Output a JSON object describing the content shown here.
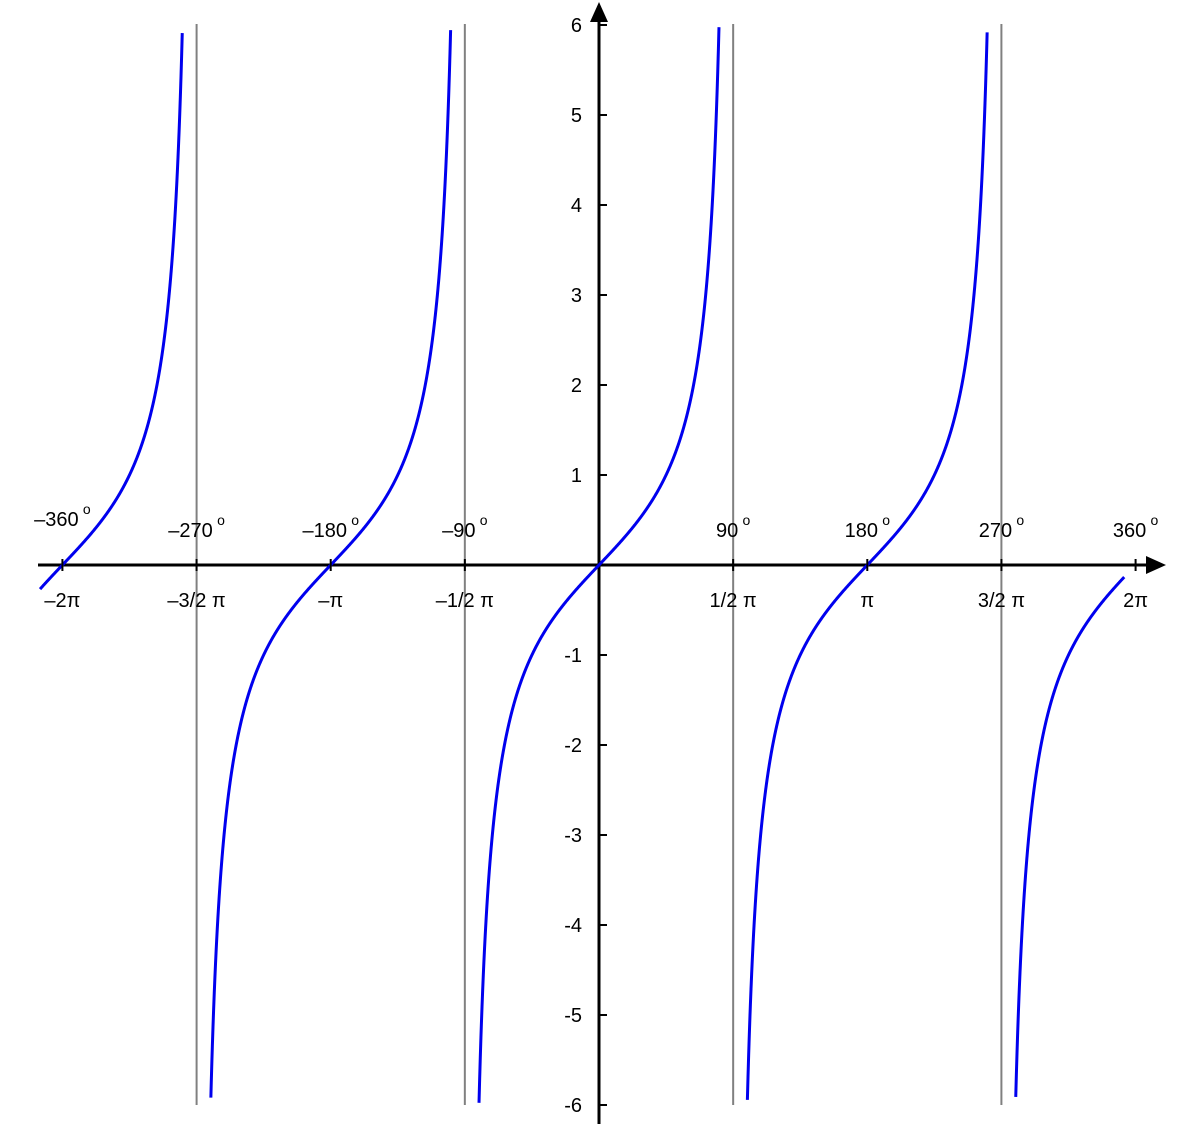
{
  "chart_data": {
    "type": "line",
    "title": "",
    "xlabel": "",
    "ylabel": "",
    "xlim": [
      -6.545,
      6.15
    ],
    "ylim": [
      -6,
      6
    ],
    "grid": false,
    "legend": "none",
    "function": "tan(x)",
    "series": [
      {
        "color": "#0000ee",
        "x_range": [
          -6.545,
          6.15
        ]
      }
    ],
    "asymptotes": [
      -4.712,
      -1.571,
      1.571,
      4.712
    ],
    "asymptote_color": "#808080",
    "axis_color": "#000000",
    "y_ticks": [
      {
        "value": 6,
        "label": "6"
      },
      {
        "value": 5,
        "label": "5"
      },
      {
        "value": 4,
        "label": "4"
      },
      {
        "value": 3,
        "label": "3"
      },
      {
        "value": 2,
        "label": "2"
      },
      {
        "value": 1,
        "label": "1"
      },
      {
        "value": -1,
        "label": "-1"
      },
      {
        "value": -2,
        "label": "-2"
      },
      {
        "value": -3,
        "label": "-3"
      },
      {
        "value": -4,
        "label": "-4"
      },
      {
        "value": -5,
        "label": "-5"
      },
      {
        "value": -6,
        "label": "-6"
      }
    ],
    "x_ticks_radians": [
      {
        "value": -6.2832,
        "label": "–2π"
      },
      {
        "value": -4.7124,
        "label": "–3/2 π"
      },
      {
        "value": -3.1416,
        "label": "–π"
      },
      {
        "value": -1.5708,
        "label": "–1/2 π"
      },
      {
        "value": 1.5708,
        "label": "1/2 π"
      },
      {
        "value": 3.1416,
        "label": "π"
      },
      {
        "value": 4.7124,
        "label": "3/2 π"
      },
      {
        "value": 6.2832,
        "label": "2π"
      }
    ],
    "x_ticks_degrees": [
      {
        "value": -6.2832,
        "label": "–360",
        "sup": "o"
      },
      {
        "value": -4.7124,
        "label": "–270",
        "sup": "o"
      },
      {
        "value": -3.1416,
        "label": "–180",
        "sup": "o"
      },
      {
        "value": -1.5708,
        "label": "–90",
        "sup": "o"
      },
      {
        "value": 1.5708,
        "label": "90",
        "sup": "o"
      },
      {
        "value": 3.1416,
        "label": "180",
        "sup": "o"
      },
      {
        "value": 4.7124,
        "label": "270",
        "sup": "o"
      },
      {
        "value": 6.2832,
        "label": "360",
        "sup": "o"
      }
    ]
  }
}
